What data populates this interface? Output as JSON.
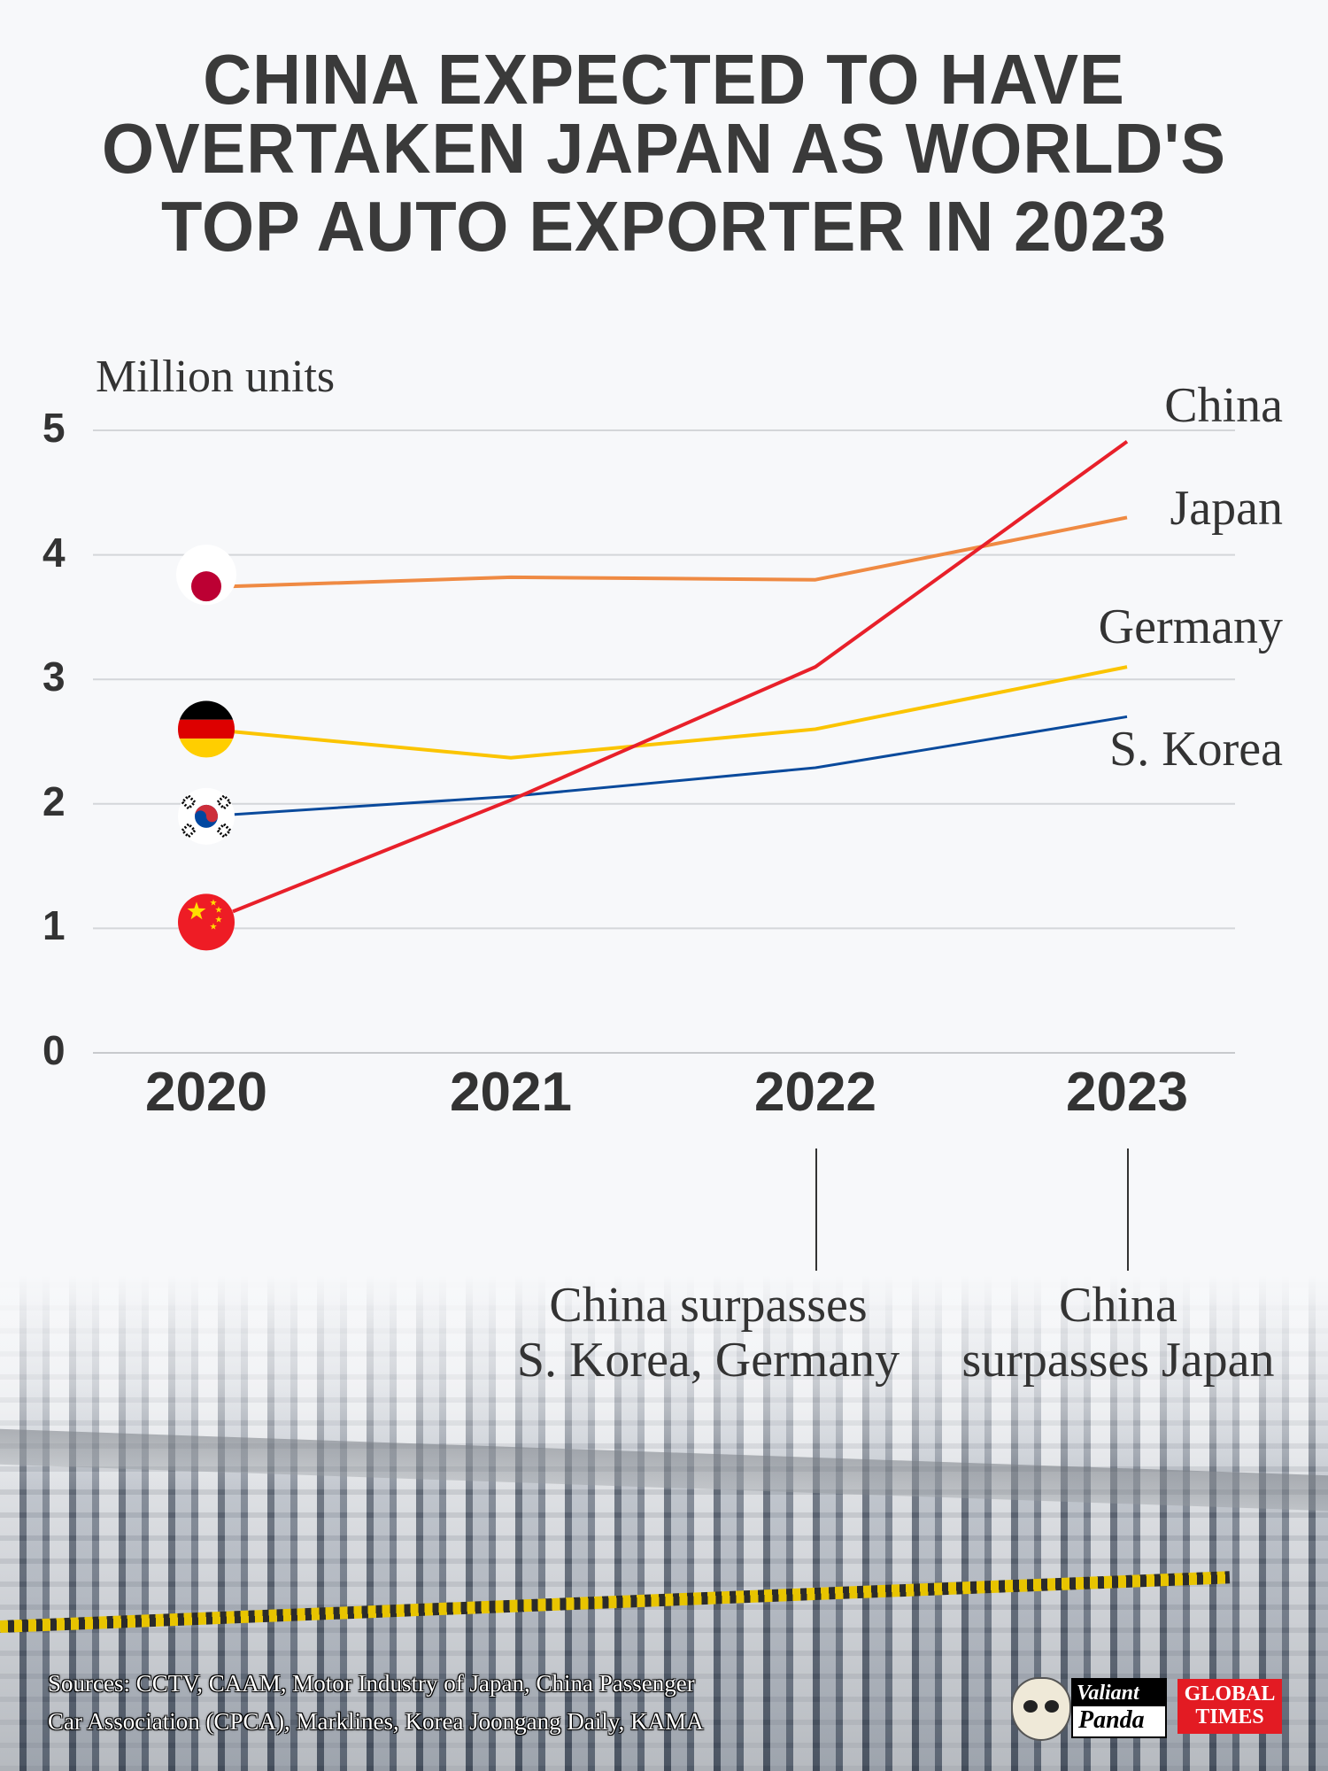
{
  "title_lines": [
    "CHINA EXPECTED TO HAVE",
    "OVERTAKEN JAPAN AS WORLD'S",
    "TOP AUTO EXPORTER IN 2023"
  ],
  "chart_data": {
    "type": "line",
    "ylabel": "Million units",
    "ylim": [
      0,
      5
    ],
    "yticks": [
      "0",
      "1",
      "2",
      "3",
      "4",
      "5"
    ],
    "categories": [
      "2020",
      "2021",
      "2022",
      "2023"
    ],
    "grid": true,
    "series": [
      {
        "name": "China",
        "color": "#e8202a",
        "values": [
          1.05,
          2.03,
          3.1,
          4.91
        ],
        "flag": "china-flag-icon"
      },
      {
        "name": "Japan",
        "color": "#ef8a43",
        "values": [
          3.74,
          3.82,
          3.8,
          4.3
        ],
        "flag": "japan-flag-icon"
      },
      {
        "name": "Germany",
        "color": "#fbc400",
        "values": [
          2.6,
          2.37,
          2.6,
          3.1
        ],
        "flag": "germany-flag-icon"
      },
      {
        "name": "S. Korea",
        "color": "#0a4a9c",
        "values": [
          1.9,
          2.06,
          2.29,
          2.7
        ],
        "flag": "south-korea-flag-icon"
      }
    ],
    "annotations": [
      {
        "category": "2022",
        "lines": [
          "China surpasses",
          "S. Korea, Germany"
        ]
      },
      {
        "category": "2023",
        "lines": [
          "China",
          "surpasses Japan"
        ]
      }
    ]
  },
  "sources": [
    "Sources: CCTV, CAAM, Motor Industry of Japan, China Passenger",
    "Car Association (CPCA), Marklines, Korea Joongang Daily, KAMA"
  ],
  "logos": {
    "valiant_panda": [
      "Valiant",
      "Panda"
    ],
    "global_times": [
      "GLOBAL",
      "TIMES"
    ]
  }
}
